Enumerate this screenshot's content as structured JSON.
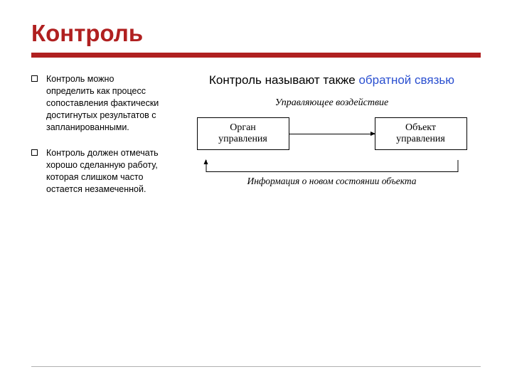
{
  "colors": {
    "title": "#b02020",
    "bar": "#b02020",
    "accent": "#2a4fd0",
    "text": "#000000",
    "footer_line": "#b0b0b0"
  },
  "title": "Контроль",
  "bullets": [
    "Контроль можно определить как процесс сопоставления фактически достигнутых результатов с запланированными.",
    "Контроль должен отмечать хорошо сделанную работу, которая слишком часто остается незамеченной."
  ],
  "subtitle": {
    "plain": "Контроль называют также ",
    "accent": "обратной связью"
  },
  "diagram": {
    "top_label": "Управляющее воздействие",
    "left_box": "Орган управления",
    "right_box": "Объект управления",
    "bottom_label": "Информация о новом состоянии объекта"
  }
}
